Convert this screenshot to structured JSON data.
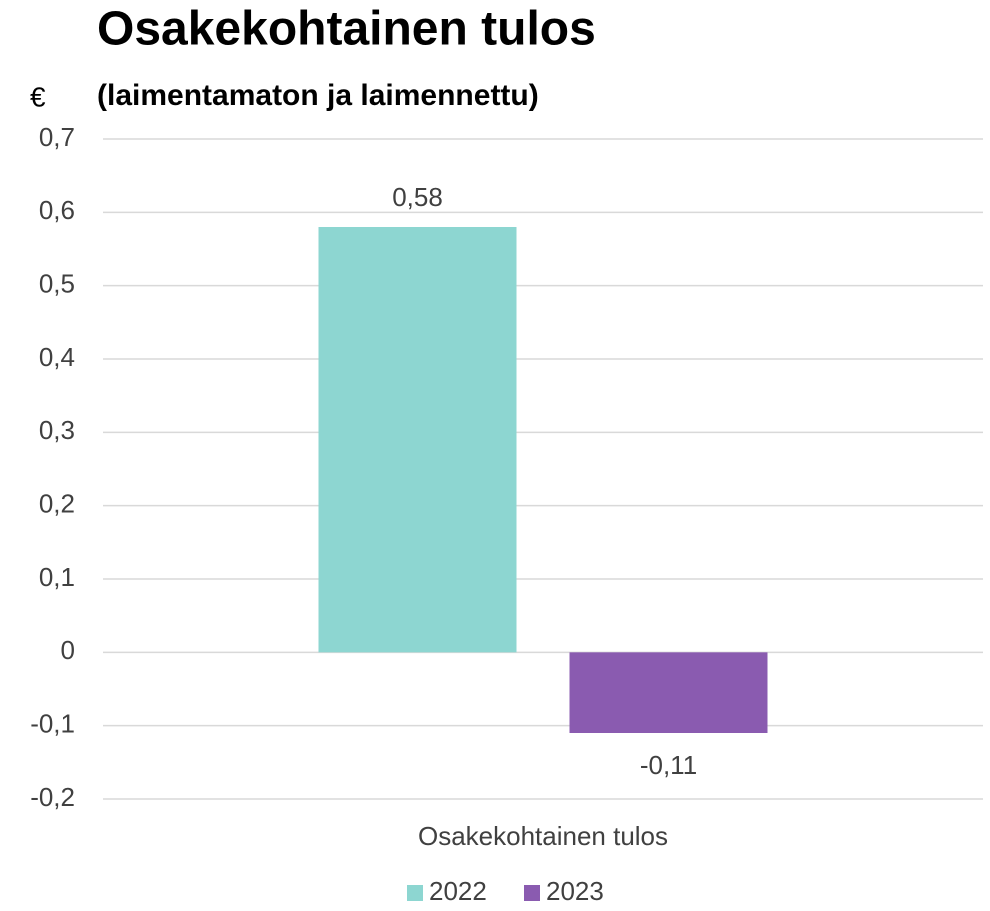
{
  "chart_data": {
    "type": "bar",
    "title": "Osakekohtainen tulos",
    "subtitle": "(laimentamaton ja laimennettu)",
    "y_label": "€",
    "categories": [
      "Osakekohtainen tulos"
    ],
    "series": [
      {
        "name": "2022",
        "color": "#8dd6d1",
        "values": [
          0.58
        ],
        "value_labels": [
          "0,58"
        ]
      },
      {
        "name": "2023",
        "color": "#8a5bb0",
        "values": [
          -0.11
        ],
        "value_labels": [
          "-0,11"
        ]
      }
    ],
    "ylim": [
      -0.2,
      0.7
    ],
    "yticks": [
      {
        "value": -0.2,
        "label": "-0,2"
      },
      {
        "value": -0.1,
        "label": "-0,1"
      },
      0,
      {
        "value": 0.1,
        "label": "0,1"
      },
      {
        "value": 0.2,
        "label": "0,2"
      },
      {
        "value": 0.3,
        "label": "0,3"
      },
      {
        "value": 0.4,
        "label": "0,4"
      },
      {
        "value": 0.5,
        "label": "0,5"
      },
      {
        "value": 0.6,
        "label": "0,6"
      },
      {
        "value": 0.7,
        "label": "0,7"
      }
    ],
    "grid": true,
    "legend": "bottom"
  }
}
